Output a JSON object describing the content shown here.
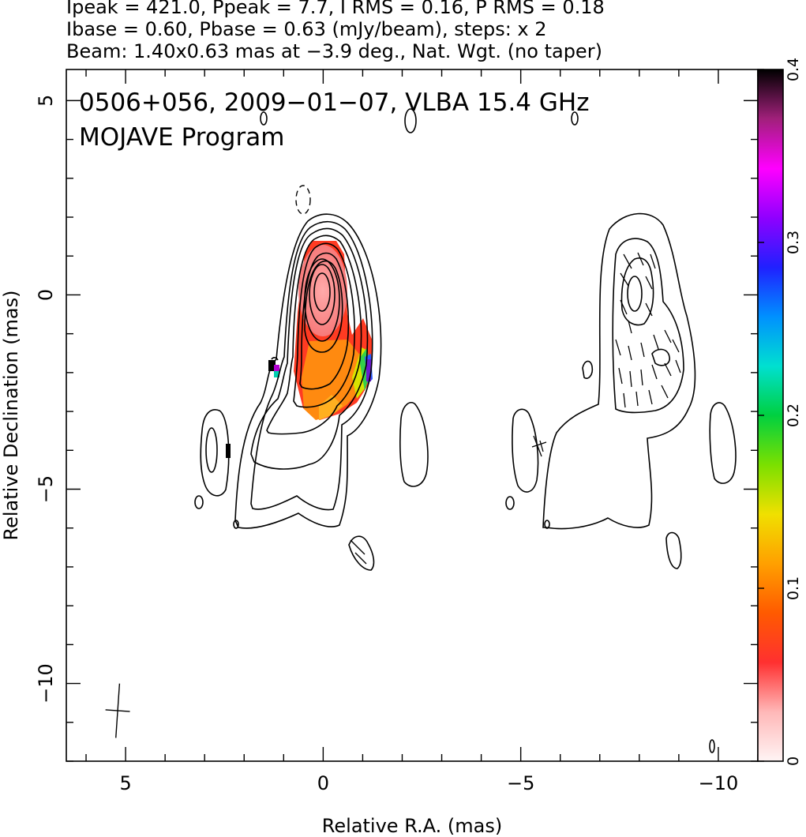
{
  "header": {
    "line1": "Ipeak = 421.0, Ppeak = 7.7, I RMS = 0.16, P RMS = 0.18",
    "line2": "Ibase = 0.60, Pbase = 0.63 (mJy/beam), steps: x 2",
    "line3": "Beam: 1.40x0.63 mas at −3.9 deg., Nat. Wgt. (no taper)"
  },
  "chart_data": {
    "type": "heatmap",
    "title": "0506+056, 2009−01−07, VLBA 15.4 GHz",
    "subtitle": "MOJAVE Program",
    "xlabel": "Relative R.A. (mas)",
    "ylabel": "Relative Declination (mas)",
    "xlim": [
      6.5,
      -11
    ],
    "ylim": [
      -12,
      5.8
    ],
    "x_ticks": [
      5,
      0,
      -5,
      -10
    ],
    "x_tick_labels": [
      "5",
      "0",
      "−5",
      "−10"
    ],
    "y_ticks": [
      5,
      0,
      -5,
      -10
    ],
    "y_tick_labels": [
      "5",
      "0",
      "−5",
      "−10"
    ],
    "colorbar": {
      "range": [
        0,
        0.4
      ],
      "ticks": [
        0,
        0.1,
        0.2,
        0.3,
        0.4
      ],
      "tick_labels": [
        "0",
        "0.1",
        "0.2",
        "0.3",
        "0.4"
      ],
      "stops": [
        "#fff4f4",
        "#ffb8b8",
        "#ff3030",
        "#ff5a00",
        "#ffa000",
        "#f0e000",
        "#7ae000",
        "#00d040",
        "#00e0d0",
        "#0090ff",
        "#2020ff",
        "#9000ff",
        "#ff00ff",
        "#a0207a",
        "#000000"
      ]
    },
    "beam": {
      "major_mas": 1.4,
      "minor_mas": 0.63,
      "pa_deg": -3.9,
      "center": [
        5.2,
        -10.7
      ]
    },
    "fractional_polarization": [
      {
        "x": 0,
        "y": 0,
        "value": 0.03
      },
      {
        "x": -0.8,
        "y": -2.2,
        "value": 0.12
      },
      {
        "x": -1.2,
        "y": -2.3,
        "value": 0.27
      },
      {
        "x": 1.2,
        "y": -2.0,
        "value": 0.36
      }
    ]
  }
}
